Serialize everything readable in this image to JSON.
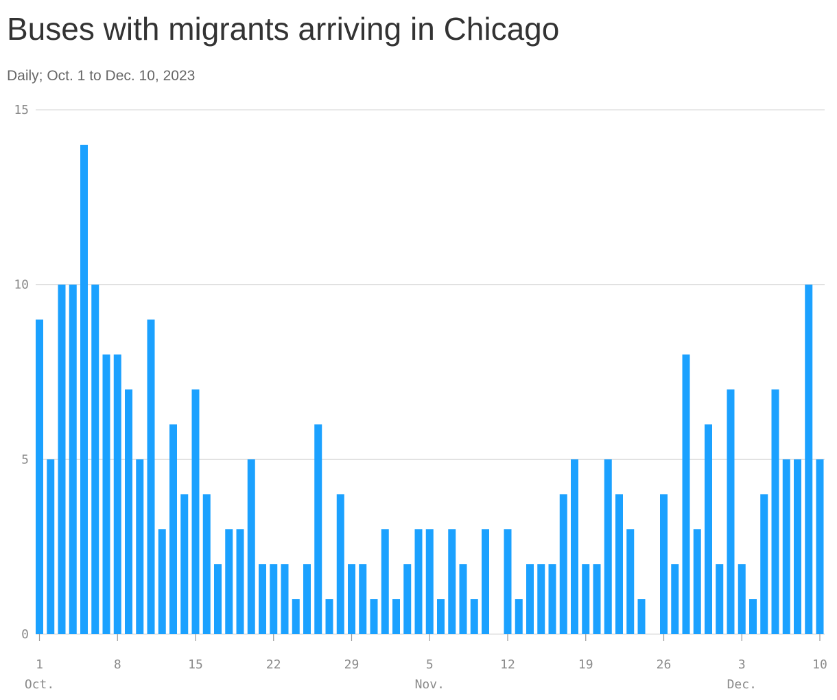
{
  "chart_data": {
    "type": "bar",
    "title": "Buses with migrants arriving in Chicago",
    "subtitle": "Daily; Oct. 1 to Dec. 10, 2023",
    "xlabel": "",
    "ylabel": "",
    "ylim": [
      0,
      15
    ],
    "y_ticks": [
      0,
      5,
      10,
      15
    ],
    "grid": true,
    "color": "#1ba1ff",
    "x": [
      "2023-10-01",
      "2023-10-02",
      "2023-10-03",
      "2023-10-04",
      "2023-10-05",
      "2023-10-06",
      "2023-10-07",
      "2023-10-08",
      "2023-10-09",
      "2023-10-10",
      "2023-10-11",
      "2023-10-12",
      "2023-10-13",
      "2023-10-14",
      "2023-10-15",
      "2023-10-16",
      "2023-10-17",
      "2023-10-18",
      "2023-10-19",
      "2023-10-20",
      "2023-10-21",
      "2023-10-22",
      "2023-10-23",
      "2023-10-24",
      "2023-10-25",
      "2023-10-26",
      "2023-10-27",
      "2023-10-28",
      "2023-10-29",
      "2023-10-30",
      "2023-10-31",
      "2023-11-01",
      "2023-11-02",
      "2023-11-03",
      "2023-11-04",
      "2023-11-05",
      "2023-11-06",
      "2023-11-07",
      "2023-11-08",
      "2023-11-09",
      "2023-11-10",
      "2023-11-11",
      "2023-11-12",
      "2023-11-13",
      "2023-11-14",
      "2023-11-15",
      "2023-11-16",
      "2023-11-17",
      "2023-11-18",
      "2023-11-19",
      "2023-11-20",
      "2023-11-21",
      "2023-11-22",
      "2023-11-23",
      "2023-11-24",
      "2023-11-25",
      "2023-11-26",
      "2023-11-27",
      "2023-11-28",
      "2023-11-29",
      "2023-11-30",
      "2023-12-01",
      "2023-12-02",
      "2023-12-03",
      "2023-12-04",
      "2023-12-05",
      "2023-12-06",
      "2023-12-07",
      "2023-12-08",
      "2023-12-09",
      "2023-12-10"
    ],
    "values": [
      9,
      5,
      10,
      10,
      14,
      10,
      8,
      8,
      7,
      5,
      9,
      3,
      6,
      4,
      7,
      4,
      2,
      3,
      3,
      5,
      2,
      2,
      2,
      1,
      2,
      6,
      1,
      4,
      2,
      2,
      1,
      3,
      1,
      2,
      3,
      3,
      1,
      3,
      2,
      1,
      3,
      0,
      3,
      1,
      2,
      2,
      2,
      4,
      5,
      2,
      2,
      5,
      4,
      3,
      1,
      0,
      4,
      2,
      8,
      3,
      6,
      2,
      7,
      2,
      1,
      4,
      7,
      5,
      5,
      10,
      5
    ],
    "x_ticks": [
      {
        "label": "1",
        "month": "Oct.",
        "x": "2023-10-01"
      },
      {
        "label": "8",
        "month": "",
        "x": "2023-10-08"
      },
      {
        "label": "15",
        "month": "",
        "x": "2023-10-15"
      },
      {
        "label": "22",
        "month": "",
        "x": "2023-10-22"
      },
      {
        "label": "29",
        "month": "",
        "x": "2023-10-29"
      },
      {
        "label": "5",
        "month": "Nov.",
        "x": "2023-11-05"
      },
      {
        "label": "12",
        "month": "",
        "x": "2023-11-12"
      },
      {
        "label": "19",
        "month": "",
        "x": "2023-11-19"
      },
      {
        "label": "26",
        "month": "",
        "x": "2023-11-26"
      },
      {
        "label": "3",
        "month": "Dec.",
        "x": "2023-12-03"
      },
      {
        "label": "10",
        "month": "",
        "x": "2023-12-10"
      }
    ]
  }
}
